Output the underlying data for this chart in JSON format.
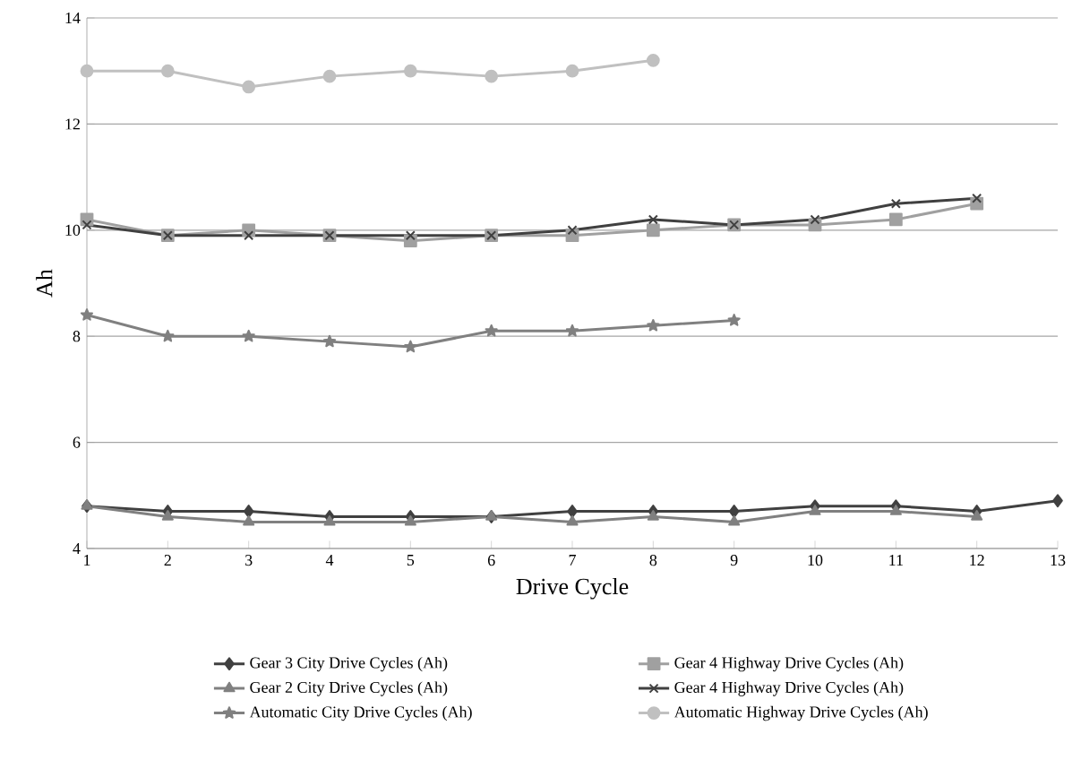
{
  "chart_data": {
    "type": "line",
    "xlabel": "Drive Cycle",
    "ylabel": "Ah",
    "x": [
      1,
      2,
      3,
      4,
      5,
      6,
      7,
      8,
      9,
      10,
      11,
      12,
      13
    ],
    "xlim": [
      1,
      13
    ],
    "xticks": [
      1,
      2,
      3,
      4,
      5,
      6,
      7,
      8,
      9,
      10,
      11,
      12,
      13
    ],
    "ylim": [
      4,
      14
    ],
    "yticks": [
      4,
      6,
      8,
      10,
      12,
      14
    ],
    "grid": "y",
    "legend": "bottom",
    "series": [
      {
        "name": "Gear 3 City Drive Cycles (Ah)",
        "color": "#404040",
        "marker": "diamond",
        "values": [
          4.8,
          4.7,
          4.7,
          4.6,
          4.6,
          4.6,
          4.7,
          4.7,
          4.7,
          4.8,
          4.8,
          4.7,
          4.9
        ]
      },
      {
        "name": "Gear 4 Highway Drive Cycles (Ah)",
        "color": "#a0a0a0",
        "marker": "square",
        "values": [
          10.2,
          9.9,
          10.0,
          9.9,
          9.8,
          9.9,
          9.9,
          10.0,
          10.1,
          10.1,
          10.2,
          10.5,
          null
        ]
      },
      {
        "name": "Gear 2 City Drive Cycles (Ah)",
        "color": "#808080",
        "marker": "triangle",
        "values": [
          4.8,
          4.6,
          4.5,
          4.5,
          4.5,
          4.6,
          4.5,
          4.6,
          4.5,
          4.7,
          4.7,
          4.6,
          null
        ]
      },
      {
        "name": "Gear 4 Highway Drive Cycles (Ah)",
        "color": "#404040",
        "marker": "cross",
        "values": [
          10.1,
          9.9,
          9.9,
          9.9,
          9.9,
          9.9,
          10.0,
          10.2,
          10.1,
          10.2,
          10.5,
          10.6,
          null
        ]
      },
      {
        "name": "Automatic City Drive Cycles (Ah)",
        "color": "#808080",
        "marker": "star",
        "values": [
          8.4,
          8.0,
          8.0,
          7.9,
          7.8,
          8.1,
          8.1,
          8.2,
          8.3,
          null,
          null,
          null,
          null
        ]
      },
      {
        "name": "Automatic Highway Drive Cycles (Ah)",
        "color": "#c0c0c0",
        "marker": "circle",
        "values": [
          13.0,
          13.0,
          12.7,
          12.9,
          13.0,
          12.9,
          13.0,
          13.2,
          null,
          null,
          null,
          null,
          null
        ]
      }
    ]
  }
}
